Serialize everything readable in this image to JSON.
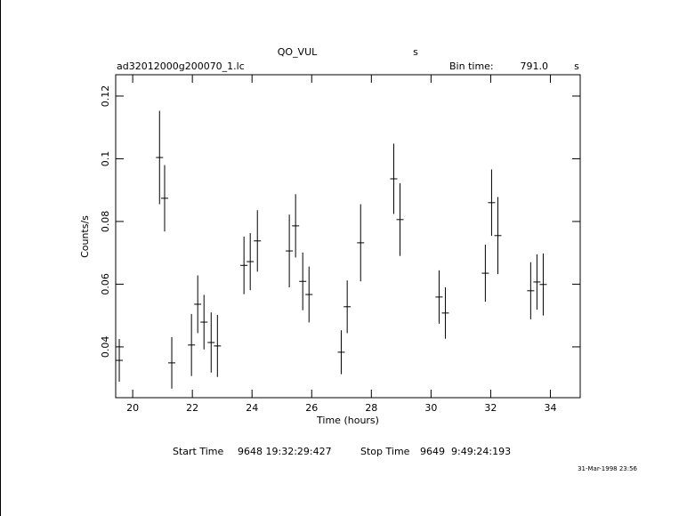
{
  "chart_data": {
    "type": "errorbar",
    "title": "QO_VUL",
    "title_unit": "s",
    "subtitle": "ad32012000g200070_1.lc",
    "bin_label": "Bin time:",
    "bin_value": "791.0",
    "bin_unit": "s",
    "xlabel": "Time (hours)",
    "ylabel": "Counts/s",
    "start_label": "Start Time",
    "start_value": "9648 19:32:29:427",
    "stop_label": "Stop Time",
    "stop_value": "9649  9:49:24:193",
    "date_stamp": "31-Mar-1998 23:56",
    "color": "#000000",
    "x": [
      19.55,
      20.9,
      21.07,
      21.31,
      21.97,
      22.18,
      22.39,
      22.63,
      22.84,
      23.73,
      23.94,
      24.18,
      25.25,
      25.46,
      25.7,
      25.91,
      26.99,
      27.19,
      27.64,
      28.75,
      28.96,
      30.27,
      30.48,
      31.82,
      32.03,
      32.24,
      33.34,
      33.55,
      33.76
    ],
    "values": [
      0.0357,
      0.1004,
      0.0874,
      0.0349,
      0.0406,
      0.0536,
      0.0479,
      0.0414,
      0.0403,
      0.066,
      0.0672,
      0.0738,
      0.0706,
      0.0786,
      0.0609,
      0.0567,
      0.0383,
      0.0528,
      0.0732,
      0.0936,
      0.0806,
      0.0559,
      0.0508,
      0.0635,
      0.086,
      0.0755,
      0.0579,
      0.0607,
      0.0599
    ],
    "yerr": [
      0.0068,
      0.0149,
      0.0106,
      0.0082,
      0.0099,
      0.0092,
      0.0087,
      0.0096,
      0.0099,
      0.0092,
      0.0091,
      0.0098,
      0.0116,
      0.0101,
      0.0092,
      0.0089,
      0.007,
      0.0084,
      0.0123,
      0.0112,
      0.0116,
      0.0085,
      0.0082,
      0.0091,
      0.0106,
      0.0123,
      0.0091,
      0.0088,
      0.0099
    ],
    "xlim": [
      19.43,
      35.0
    ],
    "ylim": [
      0.0238,
      0.1268
    ],
    "xticks": [
      20,
      22,
      24,
      26,
      28,
      30,
      32,
      34
    ],
    "yticks": [
      0.04,
      0.06,
      0.08,
      0.1,
      0.12
    ]
  }
}
